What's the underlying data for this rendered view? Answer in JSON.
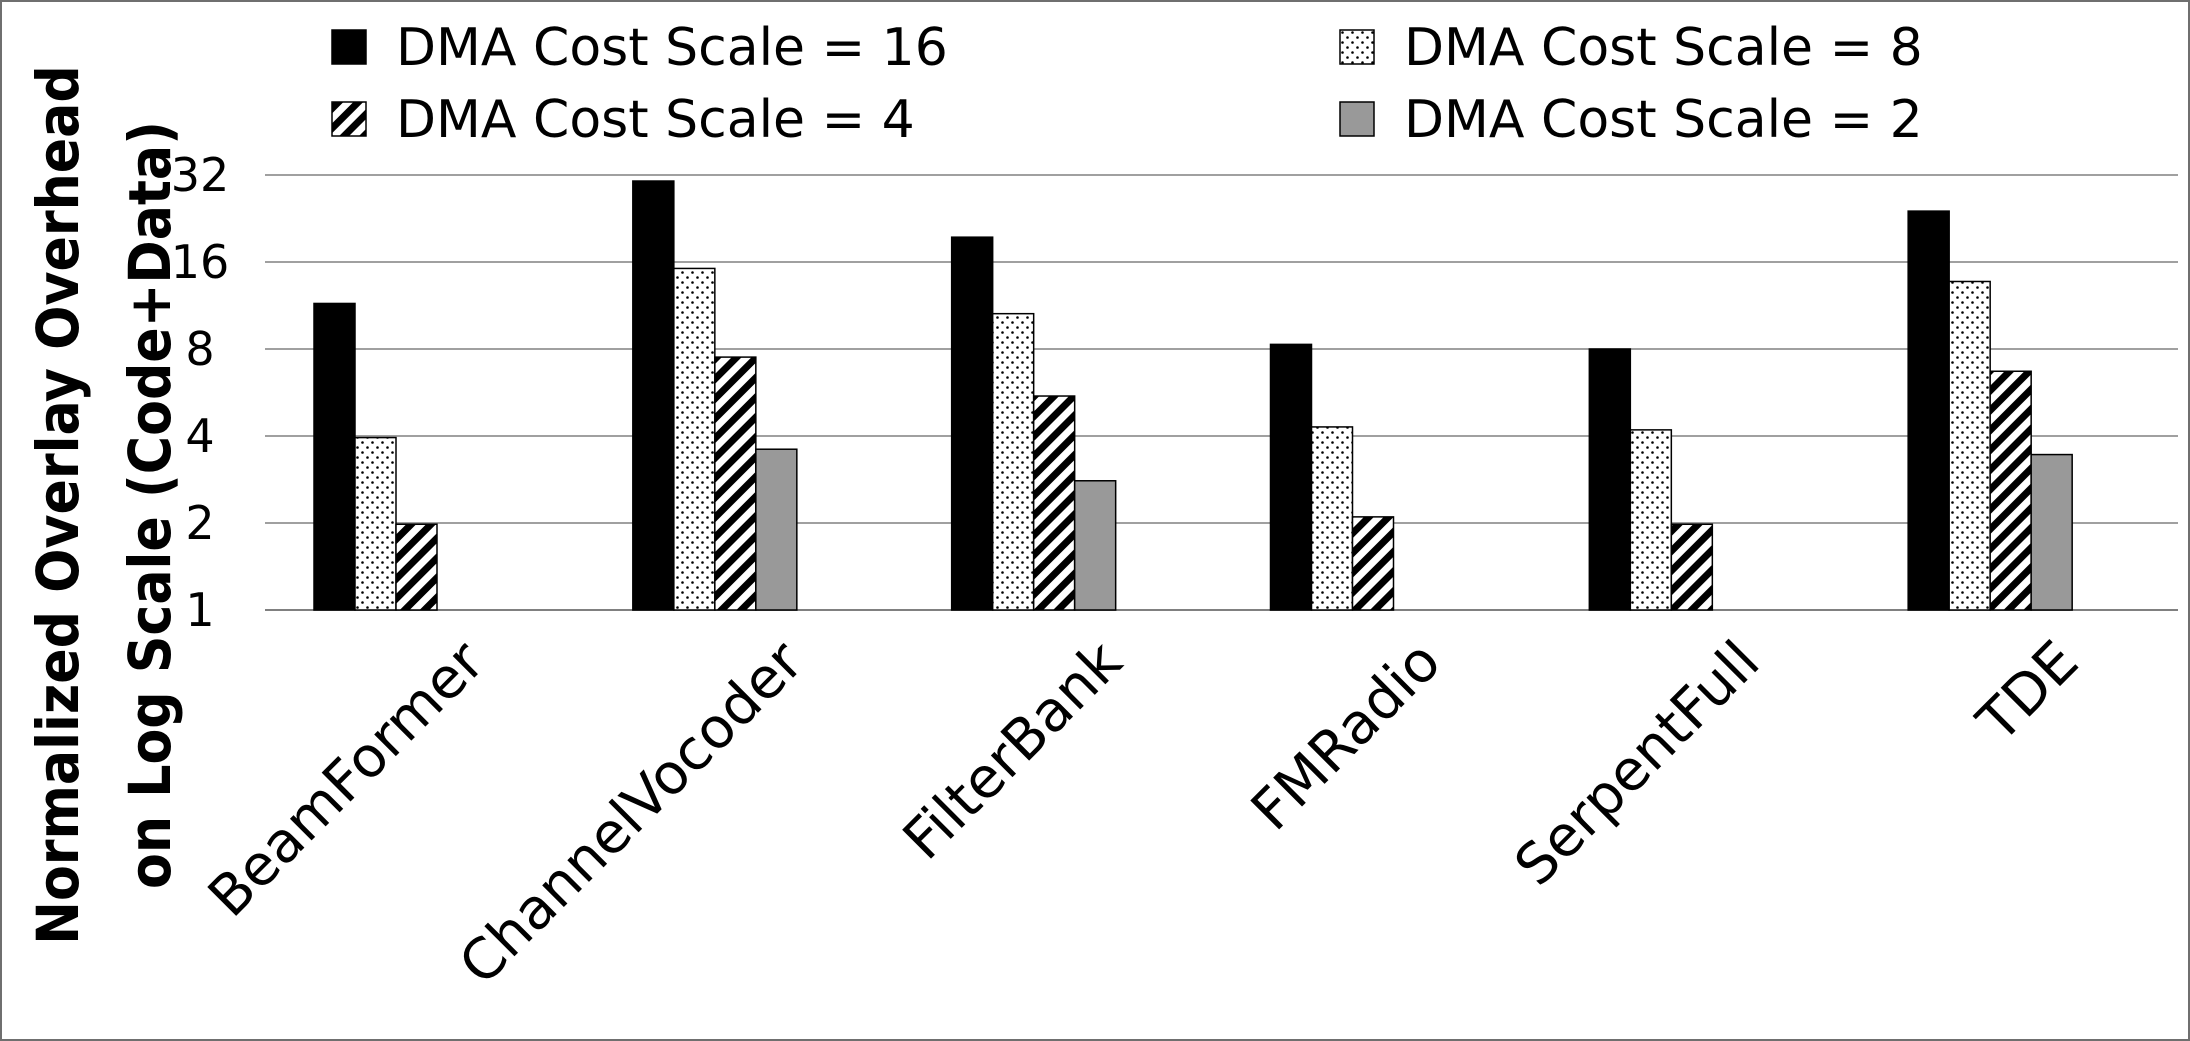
{
  "chart_data": {
    "type": "bar",
    "yscale": "log2",
    "ylim": [
      1,
      32
    ],
    "yticks": [
      1,
      2,
      4,
      8,
      16,
      32
    ],
    "ytick_labels": [
      "1",
      "2",
      "4",
      "8",
      "16",
      "32"
    ],
    "ylabel_lines": [
      "Normalized Overlay Overhead",
      "on Log Scale (Code+Data)"
    ],
    "xlabel": "",
    "grid": true,
    "legend_position": "top",
    "categories": [
      "BeamFormer",
      "ChannelVocoder",
      "FilterBank",
      "FMRadio",
      "SerpentFull",
      "TDE"
    ],
    "series": [
      {
        "name": "DMA Cost Scale = 16",
        "pattern": "solid-black",
        "values": [
          11.5,
          30.5,
          19.5,
          8.3,
          8.0,
          24.0
        ]
      },
      {
        "name": "DMA Cost Scale = 8",
        "pattern": "dots",
        "values": [
          3.95,
          15.2,
          10.6,
          4.3,
          4.2,
          13.7
        ]
      },
      {
        "name": "DMA Cost Scale = 4",
        "pattern": "diagonal-stripes",
        "values": [
          1.98,
          7.5,
          5.5,
          2.1,
          1.98,
          6.7
        ]
      },
      {
        "name": "DMA Cost Scale = 2",
        "pattern": "solid-gray",
        "values": [
          1.0,
          3.6,
          2.8,
          1.0,
          1.0,
          3.45
        ]
      }
    ],
    "colors": {
      "solid-black": "#000000",
      "solid-gray": "#999999",
      "frame": "#6f6f6f",
      "grid": "#808080"
    }
  }
}
